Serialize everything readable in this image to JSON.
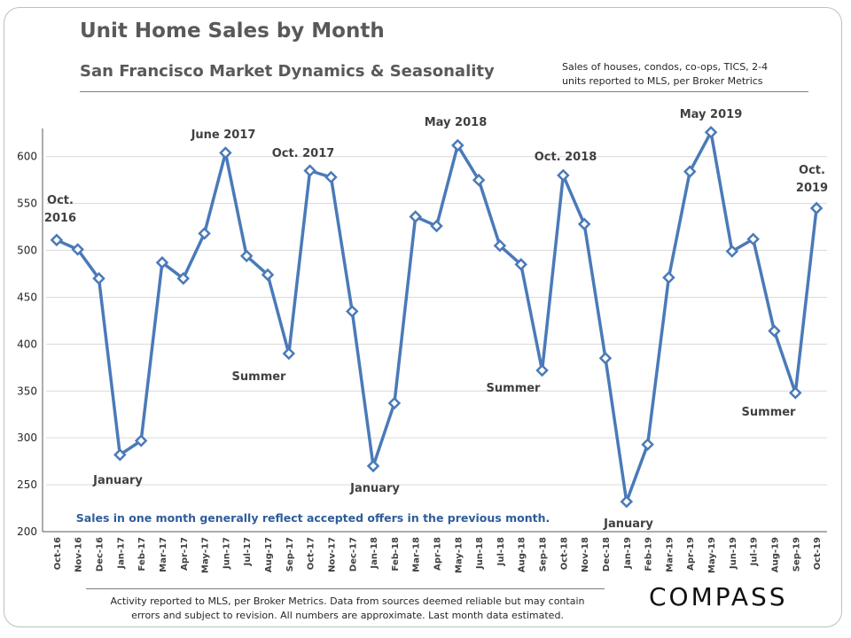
{
  "chart_data": {
    "type": "line",
    "title": "Unit Home Sales by Month",
    "subtitle": "San Francisco Market Dynamics & Seasonality",
    "source_note": "Sales of houses, condos, co-ops, TICS, 2-4 units reported to MLS, per Broker Metrics",
    "chart_note": "Sales in one month generally reflect accepted offers in the previous month.",
    "categories": [
      "Oct-16",
      "Nov-16",
      "Dec-16",
      "Jan-17",
      "Feb-17",
      "Mar-17",
      "Apr-17",
      "May-17",
      "Jun-17",
      "Jul-17",
      "Aug-17",
      "Sep-17",
      "Oct-17",
      "Nov-17",
      "Dec-17",
      "Jan-18",
      "Feb-18",
      "Mar-18",
      "Apr-18",
      "May-18",
      "Jun-18",
      "Jul-18",
      "Aug-18",
      "Sep-18",
      "Oct-18",
      "Nov-18",
      "Dec-18",
      "Jan-19",
      "Feb-19",
      "Mar-19",
      "Apr-19",
      "May-19",
      "Jun-19",
      "Jul-19",
      "Aug-19",
      "Sep-19",
      "Oct-19"
    ],
    "series": [
      {
        "name": "Unit Home Sales",
        "color": "#4a7ab8",
        "values": [
          511,
          501,
          470,
          282,
          297,
          487,
          470,
          518,
          604,
          494,
          474,
          390,
          585,
          578,
          435,
          270,
          337,
          536,
          526,
          612,
          575,
          505,
          485,
          372,
          580,
          528,
          385,
          232,
          293,
          471,
          584,
          626,
          499,
          512,
          414,
          348,
          545
        ]
      }
    ],
    "ylim": [
      200,
      630
    ],
    "yticks": [
      200,
      250,
      300,
      350,
      400,
      450,
      500,
      550,
      600
    ],
    "grid": true,
    "annotations": [
      "Oct. 2016",
      "June 2017",
      "Oct. 2017",
      "May 2018",
      "Oct. 2018",
      "May 2019",
      "Oct. 2019",
      "January",
      "January",
      "January",
      "Summer",
      "Summer",
      "Summer"
    ]
  },
  "footer": {
    "text": "Activity reported to MLS, per Broker Metrics. Data from sources deemed reliable but may contain errors and subject to revision. All numbers are approximate. Last month data estimated.",
    "logo": "COMPASS"
  }
}
